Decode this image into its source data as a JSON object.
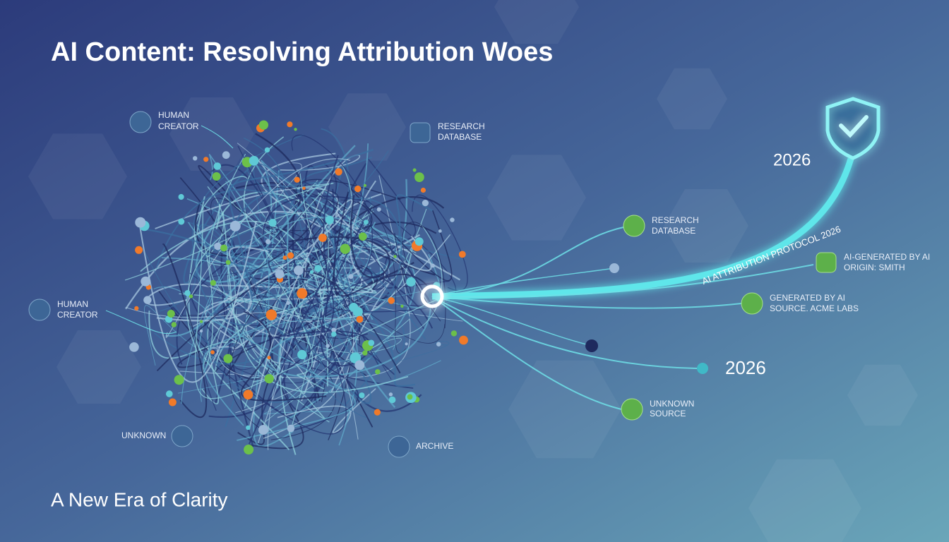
{
  "header": {
    "title": "AI Content: Resolving Attribution Woes"
  },
  "footer": {
    "subtitle": "A New Era of Clarity"
  },
  "sources": [
    {
      "line1": "HUMAN",
      "line2": "CREATOR"
    },
    {
      "line1": "RESEARCH",
      "line2": "DATABASE"
    },
    {
      "line1": "HUMAN",
      "line2": "CREATOR"
    },
    {
      "line1": "UNKNOWN"
    },
    {
      "line1": "ARCHIVE"
    }
  ],
  "outputs": [
    {
      "line1": "RESEARCH",
      "line2": "DATABASE"
    },
    {
      "line1": "AI-GENERATED BY AI",
      "line2": "ORIGIN: SMITH"
    },
    {
      "line1": "GENERATED BY AI",
      "line2": "SOURCE. ACME LABS"
    },
    {
      "line1": "UNKNOWN",
      "line2": "SOURCE"
    }
  ],
  "timeline": {
    "protocol": "AI ATTRIBUTION PROTOCOL 2026",
    "year_top": "2026",
    "year_bottom": "2026"
  }
}
